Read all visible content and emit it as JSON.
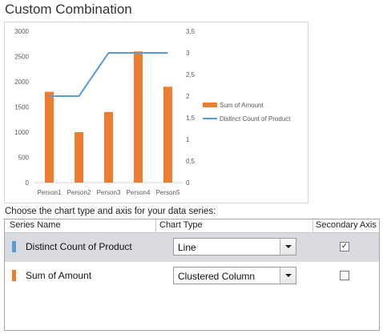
{
  "dialog": {
    "title": "Custom Combination",
    "instruction": "Choose the chart type and axis for your data series:"
  },
  "colors": {
    "amount": "#ED7D31",
    "distinct": "#5B9BD5"
  },
  "chart_data": {
    "type": "bar",
    "categories": [
      "Person1",
      "Person2",
      "Person3",
      "Person4",
      "Person5"
    ],
    "series": [
      {
        "name": "Sum of Amount",
        "type": "bar",
        "axis": "primary",
        "values": [
          1800,
          1000,
          1400,
          2600,
          1900
        ]
      },
      {
        "name": "Distinct Count of Product",
        "type": "line",
        "axis": "secondary",
        "values": [
          2,
          2,
          3,
          3,
          3
        ]
      }
    ],
    "y_primary": {
      "ylim": [
        0,
        3000
      ],
      "ticks": [
        "0",
        "500",
        "1000",
        "1500",
        "2000",
        "2500",
        "3000"
      ]
    },
    "y_secondary": {
      "ylim": [
        0,
        3.5
      ],
      "ticks": [
        "0",
        "0,5",
        "1",
        "1,5",
        "2",
        "2,5",
        "3",
        "3,5"
      ]
    },
    "legend_position": "right"
  },
  "table": {
    "headers": {
      "series_name": "Series Name",
      "chart_type": "Chart Type",
      "secondary_axis": "Secondary Axis"
    },
    "rows": [
      {
        "name": "Distinct Count of Product",
        "chart_type": "Line",
        "secondary": true,
        "color": "#5B9BD5"
      },
      {
        "name": "Sum of Amount",
        "chart_type": "Clustered Column",
        "secondary": false,
        "color": "#ED7D31"
      }
    ]
  }
}
